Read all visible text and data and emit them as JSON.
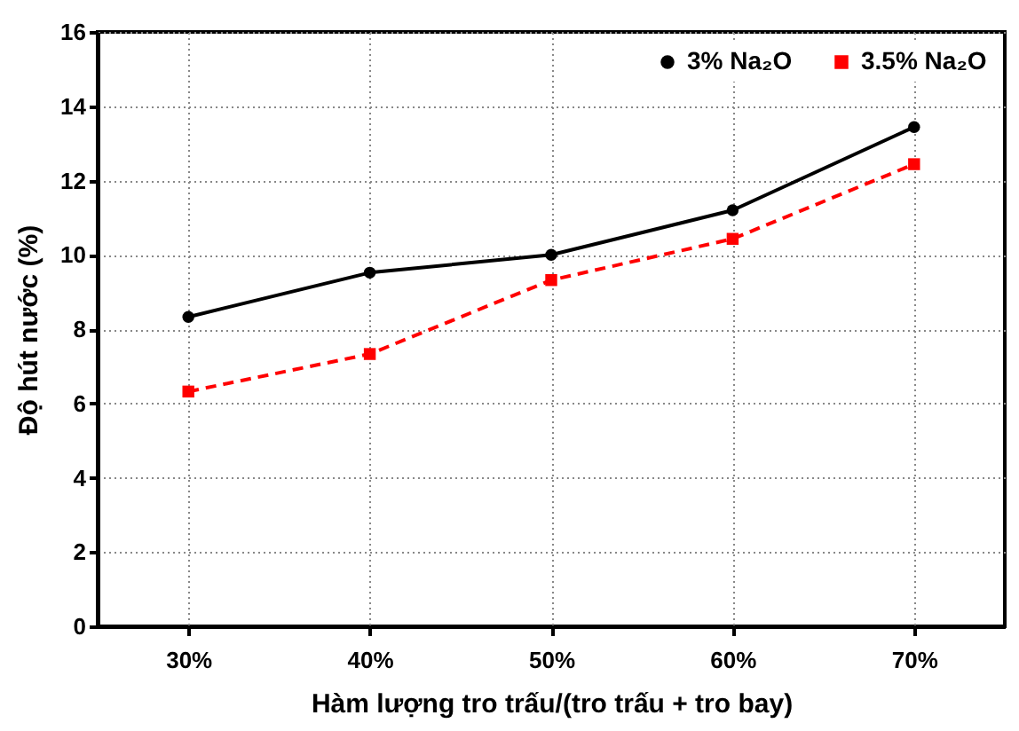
{
  "chart_data": {
    "type": "line",
    "xlabel": "Hàm lượng tro trấu/(tro trấu + tro bay)",
    "ylabel": "Độ hút nước (%)",
    "categories": [
      "30%",
      "40%",
      "50%",
      "60%",
      "70%"
    ],
    "series": [
      {
        "name": "3% Na₂O",
        "color": "#000000",
        "marker": "circle",
        "line_style": "solid",
        "values": [
          8.33,
          9.52,
          10.0,
          11.2,
          13.44
        ]
      },
      {
        "name": "3.5% Na₂O",
        "color": "#ff0000",
        "marker": "square",
        "line_style": "dashed",
        "values": [
          6.32,
          7.33,
          9.32,
          10.43,
          12.44
        ]
      }
    ],
    "ylim": [
      0,
      16
    ],
    "yticks": [
      0,
      2,
      4,
      6,
      8,
      10,
      12,
      14,
      16
    ],
    "grid": true,
    "legend": "top right"
  }
}
